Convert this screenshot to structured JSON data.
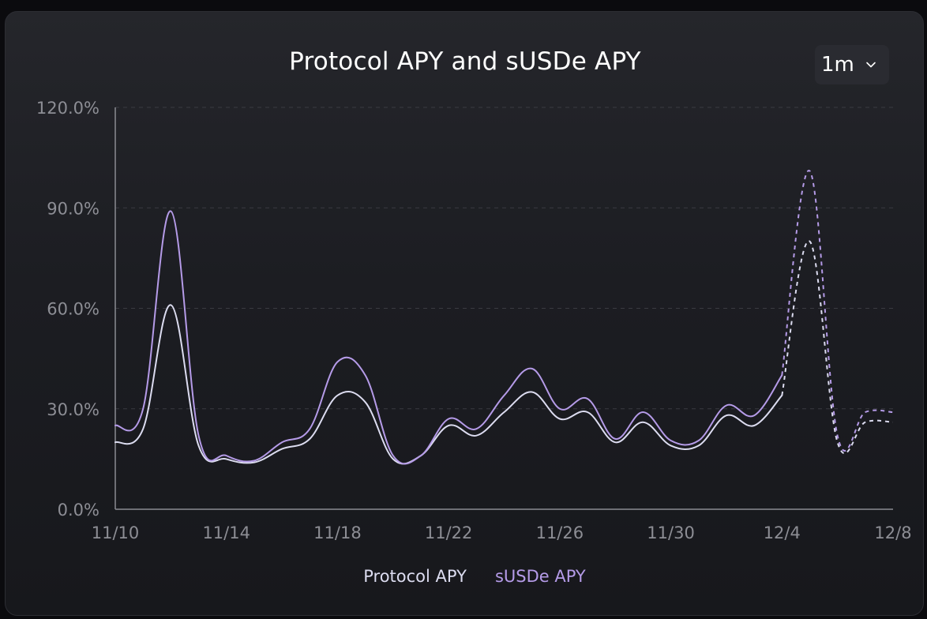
{
  "header": {
    "title": "Protocol APY and sUSDe APY",
    "range_value": "1m",
    "range_icon": "chevron-down-icon"
  },
  "chart_data": {
    "type": "line",
    "title": "Protocol APY and sUSDe APY",
    "xlabel": "",
    "ylabel": "",
    "x_ticks": [
      "11/10",
      "11/14",
      "11/18",
      "11/22",
      "11/26",
      "11/30",
      "12/4",
      "12/8"
    ],
    "y_ticks": [
      "0.0%",
      "30.0%",
      "60.0%",
      "90.0%",
      "120.0%"
    ],
    "ylim": [
      0,
      120
    ],
    "grid": "horizontal-dashed",
    "legend": "bottom",
    "actual_until": "12/4",
    "dashed_after": "12/4",
    "x": [
      "11/10",
      "11/11",
      "11/12",
      "11/13",
      "11/14",
      "11/15",
      "11/16",
      "11/17",
      "11/18",
      "11/19",
      "11/20",
      "11/21",
      "11/22",
      "11/23",
      "11/24",
      "11/25",
      "11/26",
      "11/27",
      "11/28",
      "11/29",
      "11/30",
      "12/1",
      "12/2",
      "12/3",
      "12/4",
      "12/5",
      "12/6",
      "12/7",
      "12/8"
    ],
    "series": [
      {
        "name": "Protocol APY",
        "color": "#dcdcf0",
        "values": [
          20,
          24,
          61,
          19,
          15,
          14,
          18,
          21,
          34,
          32,
          15,
          16,
          25,
          22,
          29,
          35,
          27,
          29,
          20,
          26,
          19,
          19,
          28,
          25,
          34,
          80,
          20,
          26,
          26
        ]
      },
      {
        "name": "sUSDe APY",
        "color": "#b59be8",
        "values": [
          25,
          30,
          89,
          22,
          16,
          14.5,
          20,
          24,
          44,
          40,
          16,
          16,
          27,
          24,
          34,
          42,
          30,
          33,
          21,
          29,
          20.5,
          20.5,
          31,
          28,
          40,
          101,
          22,
          29,
          29
        ]
      }
    ]
  }
}
